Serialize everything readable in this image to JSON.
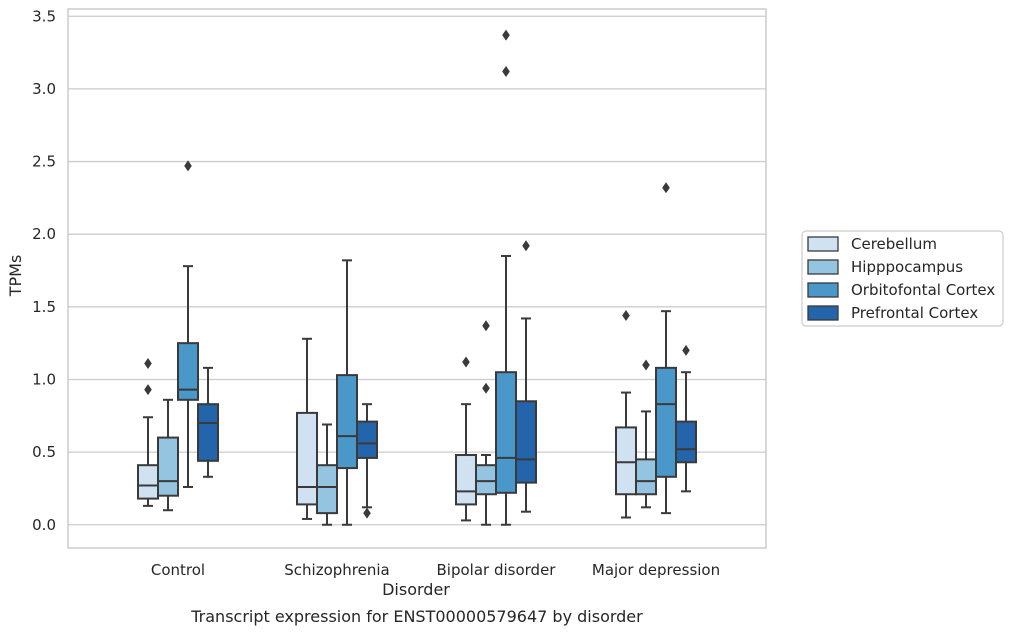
{
  "chart_data": {
    "type": "box",
    "xlabel": "Disorder",
    "ylabel": "TPMs",
    "caption": "Transcript expression for ENST00000579647 by disorder",
    "ylim": [
      -0.16,
      3.55
    ],
    "yticks": [
      "0.0",
      "0.5",
      "1.0",
      "1.5",
      "2.0",
      "2.5",
      "3.0",
      "3.5"
    ],
    "ytick_values": [
      0,
      0.5,
      1.0,
      1.5,
      2.0,
      2.5,
      3.0,
      3.5
    ],
    "grid": "horizontal",
    "legend_position": "right",
    "categories": [
      "Control",
      "Schizophrenia",
      "Bipolar disorder",
      "Major depression"
    ],
    "series": [
      {
        "name": "Cerebellum",
        "color": "#d0e1f2",
        "boxes": [
          {
            "whislo": 0.13,
            "q1": 0.18,
            "med": 0.27,
            "q3": 0.41,
            "whishi": 0.74,
            "fliers": [
              0.93,
              1.11
            ]
          },
          {
            "whislo": 0.04,
            "q1": 0.14,
            "med": 0.26,
            "q3": 0.77,
            "whishi": 1.28,
            "fliers": []
          },
          {
            "whislo": 0.03,
            "q1": 0.14,
            "med": 0.23,
            "q3": 0.48,
            "whishi": 0.83,
            "fliers": [
              1.12
            ]
          },
          {
            "whislo": 0.05,
            "q1": 0.21,
            "med": 0.43,
            "q3": 0.67,
            "whishi": 0.91,
            "fliers": [
              1.44
            ]
          }
        ]
      },
      {
        "name": "Hipppocampus",
        "color": "#94c4df",
        "boxes": [
          {
            "whislo": 0.1,
            "q1": 0.2,
            "med": 0.3,
            "q3": 0.6,
            "whishi": 0.86,
            "fliers": []
          },
          {
            "whislo": 0.0,
            "q1": 0.08,
            "med": 0.26,
            "q3": 0.41,
            "whishi": 0.69,
            "fliers": []
          },
          {
            "whislo": 0.0,
            "q1": 0.21,
            "med": 0.3,
            "q3": 0.41,
            "whishi": 0.48,
            "fliers": [
              0.94,
              1.37
            ]
          },
          {
            "whislo": 0.12,
            "q1": 0.21,
            "med": 0.3,
            "q3": 0.45,
            "whishi": 0.78,
            "fliers": [
              1.1
            ]
          }
        ]
      },
      {
        "name": "Orbitofontal Cortex",
        "color": "#4a98c9",
        "boxes": [
          {
            "whislo": 0.26,
            "q1": 0.86,
            "med": 0.93,
            "q3": 1.25,
            "whishi": 1.78,
            "fliers": [
              2.47
            ]
          },
          {
            "whislo": 0.0,
            "q1": 0.39,
            "med": 0.61,
            "q3": 1.03,
            "whishi": 1.82,
            "fliers": []
          },
          {
            "whislo": 0.0,
            "q1": 0.22,
            "med": 0.46,
            "q3": 1.05,
            "whishi": 1.85,
            "fliers": [
              3.12,
              3.37
            ]
          },
          {
            "whislo": 0.08,
            "q1": 0.33,
            "med": 0.83,
            "q3": 1.08,
            "whishi": 1.47,
            "fliers": [
              2.32
            ]
          }
        ]
      },
      {
        "name": "Prefrontal Cortex",
        "color": "#2364aa",
        "boxes": [
          {
            "whislo": 0.33,
            "q1": 0.44,
            "med": 0.7,
            "q3": 0.83,
            "whishi": 1.08,
            "fliers": []
          },
          {
            "whislo": 0.12,
            "q1": 0.46,
            "med": 0.56,
            "q3": 0.71,
            "whishi": 0.83,
            "fliers": [
              0.08
            ]
          },
          {
            "whislo": 0.09,
            "q1": 0.29,
            "med": 0.45,
            "q3": 0.85,
            "whishi": 1.42,
            "fliers": [
              1.92
            ]
          },
          {
            "whislo": 0.23,
            "q1": 0.43,
            "med": 0.52,
            "q3": 0.71,
            "whishi": 1.05,
            "fliers": [
              1.2
            ]
          }
        ]
      }
    ]
  }
}
